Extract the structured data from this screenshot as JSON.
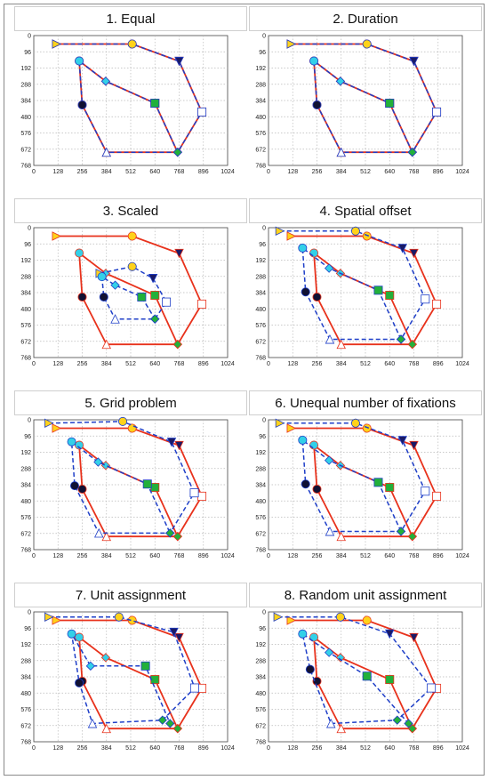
{
  "colors": {
    "scanpath1": "#e8321c",
    "scanpath2": "#1f3fc8",
    "grid": "#b9b9b9"
  },
  "chart_data": [
    {
      "type": "scatter",
      "title": "1. Equal",
      "xlim": [
        0,
        1024
      ],
      "ylim": [
        768,
        0
      ],
      "xticks": [
        0,
        128,
        256,
        384,
        512,
        640,
        768,
        896,
        1024
      ],
      "yticks": [
        0,
        96,
        192,
        288,
        384,
        480,
        576,
        672,
        768
      ],
      "grid": true,
      "series": [
        {
          "points": [
            [
              120,
              50
            ],
            [
              520,
              50
            ],
            [
              768,
              152
            ],
            [
              888,
              452
            ],
            [
              760,
              690
            ],
            [
              384,
              690
            ],
            [
              256,
              410
            ],
            [
              240,
              150
            ],
            [
              380,
              270
            ],
            [
              640,
              400
            ],
            [
              760,
              690
            ]
          ]
        },
        {
          "points": [
            [
              120,
              50
            ],
            [
              520,
              50
            ],
            [
              768,
              152
            ],
            [
              888,
              452
            ],
            [
              760,
              690
            ],
            [
              384,
              690
            ],
            [
              256,
              410
            ],
            [
              240,
              150
            ],
            [
              380,
              270
            ],
            [
              640,
              400
            ],
            [
              760,
              690
            ]
          ]
        }
      ]
    },
    {
      "type": "scatter",
      "title": "2. Duration",
      "xlim": [
        0,
        1024
      ],
      "ylim": [
        768,
        0
      ],
      "xticks": [
        0,
        128,
        256,
        384,
        512,
        640,
        768,
        896,
        1024
      ],
      "yticks": [
        0,
        96,
        192,
        288,
        384,
        480,
        576,
        672,
        768
      ],
      "grid": true,
      "series": [
        {
          "points": [
            [
              120,
              50
            ],
            [
              520,
              50
            ],
            [
              768,
              152
            ],
            [
              888,
              452
            ],
            [
              760,
              690
            ],
            [
              384,
              690
            ],
            [
              256,
              410
            ],
            [
              240,
              150
            ],
            [
              380,
              270
            ],
            [
              640,
              400
            ],
            [
              760,
              690
            ]
          ]
        },
        {
          "points": [
            [
              120,
              50
            ],
            [
              520,
              50
            ],
            [
              768,
              152
            ],
            [
              888,
              452
            ],
            [
              760,
              690
            ],
            [
              384,
              690
            ],
            [
              256,
              410
            ],
            [
              240,
              150
            ],
            [
              380,
              270
            ],
            [
              640,
              400
            ],
            [
              760,
              690
            ]
          ]
        }
      ]
    },
    {
      "type": "scatter",
      "title": "3. Scaled",
      "xlim": [
        0,
        1024
      ],
      "ylim": [
        768,
        0
      ],
      "xticks": [
        0,
        128,
        256,
        384,
        512,
        640,
        768,
        896,
        1024
      ],
      "yticks": [
        0,
        96,
        192,
        288,
        384,
        480,
        576,
        672,
        768
      ],
      "grid": true,
      "series": [
        {
          "points": [
            [
              120,
              50
            ],
            [
              520,
              50
            ],
            [
              768,
              152
            ],
            [
              888,
              452
            ],
            [
              760,
              690
            ],
            [
              384,
              690
            ],
            [
              256,
              410
            ],
            [
              240,
              150
            ],
            [
              380,
              270
            ],
            [
              640,
              400
            ],
            [
              760,
              690
            ]
          ]
        },
        {
          "points": [
            [
              350,
              270
            ],
            [
              520,
              230
            ],
            [
              630,
              300
            ],
            [
              700,
              440
            ],
            [
              640,
              540
            ],
            [
              430,
              540
            ],
            [
              370,
              410
            ],
            [
              360,
              290
            ],
            [
              430,
              340
            ],
            [
              570,
              410
            ],
            [
              640,
              540
            ]
          ]
        }
      ]
    },
    {
      "type": "scatter",
      "title": "4. Spatial offset",
      "xlim": [
        0,
        1024
      ],
      "ylim": [
        768,
        0
      ],
      "xticks": [
        0,
        128,
        256,
        384,
        512,
        640,
        768,
        896,
        1024
      ],
      "yticks": [
        0,
        96,
        192,
        288,
        384,
        480,
        576,
        672,
        768
      ],
      "grid": true,
      "series": [
        {
          "points": [
            [
              120,
              50
            ],
            [
              520,
              50
            ],
            [
              768,
              152
            ],
            [
              888,
              452
            ],
            [
              760,
              690
            ],
            [
              384,
              690
            ],
            [
              256,
              410
            ],
            [
              240,
              150
            ],
            [
              380,
              270
            ],
            [
              640,
              400
            ],
            [
              760,
              690
            ]
          ]
        },
        {
          "points": [
            [
              60,
              20
            ],
            [
              460,
              20
            ],
            [
              708,
              122
            ],
            [
              828,
              422
            ],
            [
              700,
              660
            ],
            [
              324,
              660
            ],
            [
              196,
              380
            ],
            [
              180,
              120
            ],
            [
              320,
              240
            ],
            [
              580,
              370
            ],
            [
              700,
              660
            ]
          ]
        }
      ]
    },
    {
      "type": "scatter",
      "title": "5. Grid problem",
      "xlim": [
        0,
        1024
      ],
      "ylim": [
        768,
        0
      ],
      "xticks": [
        0,
        128,
        256,
        384,
        512,
        640,
        768,
        896,
        1024
      ],
      "yticks": [
        0,
        96,
        192,
        288,
        384,
        480,
        576,
        672,
        768
      ],
      "grid": true,
      "series": [
        {
          "points": [
            [
              120,
              50
            ],
            [
              520,
              50
            ],
            [
              768,
              152
            ],
            [
              888,
              452
            ],
            [
              760,
              690
            ],
            [
              384,
              690
            ],
            [
              256,
              410
            ],
            [
              240,
              150
            ],
            [
              380,
              270
            ],
            [
              640,
              400
            ],
            [
              760,
              690
            ]
          ]
        },
        {
          "points": [
            [
              80,
              20
            ],
            [
              470,
              10
            ],
            [
              728,
              132
            ],
            [
              848,
              432
            ],
            [
              720,
              670
            ],
            [
              344,
              670
            ],
            [
              216,
              390
            ],
            [
              200,
              130
            ],
            [
              340,
              250
            ],
            [
              600,
              380
            ],
            [
              720,
              670
            ]
          ]
        }
      ]
    },
    {
      "type": "scatter",
      "title": "6. Unequal number of fixations",
      "xlim": [
        0,
        1024
      ],
      "ylim": [
        768,
        0
      ],
      "xticks": [
        0,
        128,
        256,
        384,
        512,
        640,
        768,
        896,
        1024
      ],
      "yticks": [
        0,
        96,
        192,
        288,
        384,
        480,
        576,
        672,
        768
      ],
      "grid": true,
      "series": [
        {
          "points": [
            [
              120,
              50
            ],
            [
              520,
              50
            ],
            [
              768,
              152
            ],
            [
              888,
              452
            ],
            [
              760,
              690
            ],
            [
              384,
              690
            ],
            [
              256,
              410
            ],
            [
              240,
              150
            ],
            [
              380,
              270
            ],
            [
              640,
              400
            ],
            [
              760,
              690
            ]
          ]
        },
        {
          "points": [
            [
              60,
              20
            ],
            [
              460,
              20
            ],
            [
              708,
              122
            ],
            [
              828,
              422
            ],
            [
              700,
              660
            ],
            [
              324,
              660
            ],
            [
              196,
              380
            ],
            [
              180,
              120
            ],
            [
              320,
              240
            ],
            [
              580,
              370
            ],
            [
              700,
              660
            ]
          ]
        }
      ]
    },
    {
      "type": "scatter",
      "title": "7. Unit assignment",
      "xlim": [
        0,
        1024
      ],
      "ylim": [
        768,
        0
      ],
      "xticks": [
        0,
        128,
        256,
        384,
        512,
        640,
        768,
        896,
        1024
      ],
      "yticks": [
        0,
        96,
        192,
        288,
        384,
        480,
        576,
        672,
        768
      ],
      "grid": true,
      "series": [
        {
          "points": [
            [
              120,
              50
            ],
            [
              520,
              50
            ],
            [
              768,
              152
            ],
            [
              888,
              452
            ],
            [
              760,
              690
            ],
            [
              384,
              690
            ],
            [
              256,
              410
            ],
            [
              240,
              150
            ],
            [
              380,
              270
            ],
            [
              640,
              400
            ],
            [
              760,
              690
            ]
          ]
        },
        {
          "points": [
            [
              80,
              30
            ],
            [
              450,
              30
            ],
            [
              740,
              120
            ],
            [
              850,
              450
            ],
            [
              680,
              640
            ],
            [
              310,
              660
            ],
            [
              240,
              420
            ],
            [
              200,
              130
            ],
            [
              300,
              320
            ],
            [
              590,
              320
            ],
            [
              720,
              660
            ]
          ]
        }
      ]
    },
    {
      "type": "scatter",
      "title": "8. Random unit assignment",
      "xlim": [
        0,
        1024
      ],
      "ylim": [
        768,
        0
      ],
      "xticks": [
        0,
        128,
        256,
        384,
        512,
        640,
        768,
        896,
        1024
      ],
      "yticks": [
        0,
        96,
        192,
        288,
        384,
        480,
        576,
        672,
        768
      ],
      "grid": true,
      "series": [
        {
          "points": [
            [
              120,
              50
            ],
            [
              520,
              50
            ],
            [
              768,
              152
            ],
            [
              888,
              452
            ],
            [
              760,
              690
            ],
            [
              384,
              690
            ],
            [
              256,
              410
            ],
            [
              240,
              150
            ],
            [
              380,
              270
            ],
            [
              640,
              400
            ],
            [
              760,
              690
            ]
          ]
        },
        {
          "points": [
            [
              50,
              30
            ],
            [
              380,
              30
            ],
            [
              640,
              130
            ],
            [
              860,
              450
            ],
            [
              680,
              640
            ],
            [
              330,
              660
            ],
            [
              220,
              340
            ],
            [
              180,
              130
            ],
            [
              320,
              240
            ],
            [
              520,
              380
            ],
            [
              740,
              660
            ]
          ]
        }
      ]
    }
  ]
}
